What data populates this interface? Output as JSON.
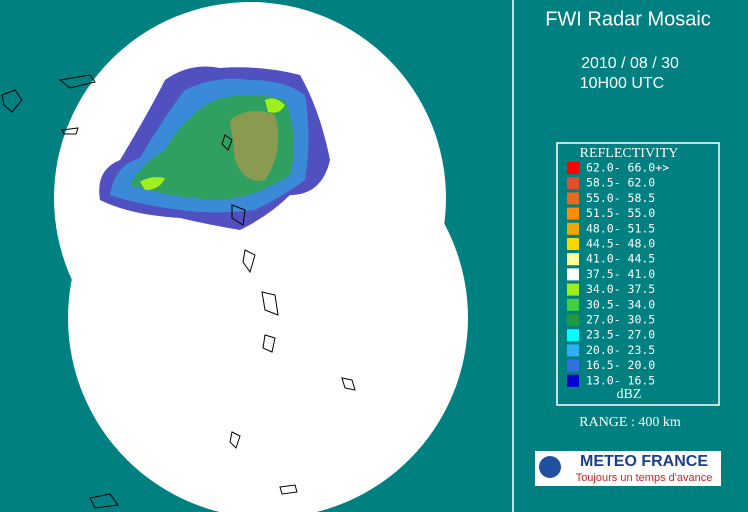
{
  "header": {
    "title": "FWI Radar Mosaic",
    "date": "2010 / 08 / 30",
    "time": "10H00 UTC"
  },
  "legend": {
    "title": "REFLECTIVITY",
    "entries": [
      {
        "label": "62.0- 66.0+>",
        "color": "#ff0000"
      },
      {
        "label": "58.5- 62.0",
        "color": "#e05030"
      },
      {
        "label": "55.0- 58.5",
        "color": "#e86a20"
      },
      {
        "label": "51.5- 55.0",
        "color": "#ff8c00"
      },
      {
        "label": "48.0- 51.5",
        "color": "#f0a800"
      },
      {
        "label": "44.5- 48.0",
        "color": "#ffd700"
      },
      {
        "label": "41.0- 44.5",
        "color": "#ffff99"
      },
      {
        "label": "37.5- 41.0",
        "color": "#ffffff"
      },
      {
        "label": "34.0- 37.5",
        "color": "#a0f020"
      },
      {
        "label": "30.5- 34.0",
        "color": "#40d040"
      },
      {
        "label": "27.0- 30.5",
        "color": "#209a40"
      },
      {
        "label": "23.5- 27.0",
        "color": "#00ffff"
      },
      {
        "label": "20.0- 23.5",
        "color": "#30b0f0"
      },
      {
        "label": "16.5- 20.0",
        "color": "#3070e0"
      },
      {
        "label": "13.0- 16.5",
        "color": "#0000d0"
      }
    ],
    "unit": "dBZ"
  },
  "range": "RANGE : 400 km",
  "logo": {
    "name": "METEO FRANCE",
    "tagline": "Toujours un temps d'avance"
  }
}
